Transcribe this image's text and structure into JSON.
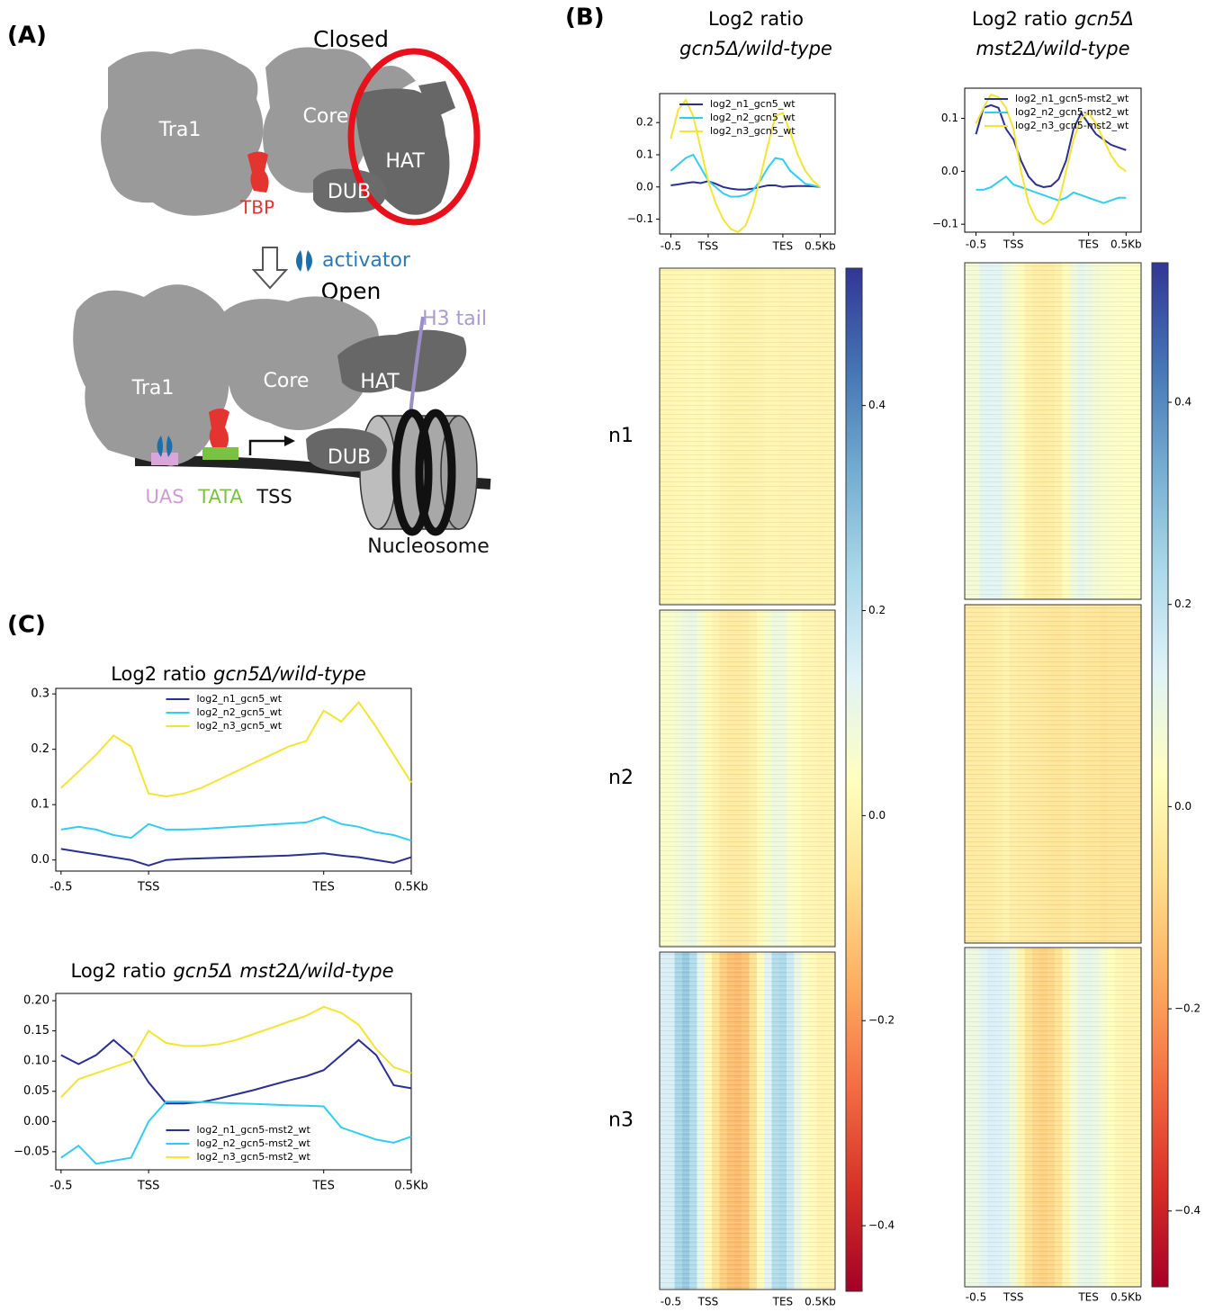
{
  "panel_labels": [
    "(A)",
    "(B)",
    "(C)"
  ],
  "diagram": {
    "closed": {
      "title": "Closed",
      "modules": [
        "Tra1",
        "Core",
        "HAT",
        "DUB",
        "TBP"
      ]
    },
    "arrow_label": "activator",
    "open": {
      "title": "Open",
      "modules": [
        "Tra1",
        "Core",
        "HAT",
        "DUB"
      ],
      "tail": "H3 tail",
      "promoter": [
        "UAS",
        "TATA",
        "TSS"
      ],
      "nucleosome": "Nucleosome"
    }
  },
  "chart_data": [
    {
      "type": "line",
      "title": [
        "Log2 ratio",
        "gcn5Δ/wild-type"
      ],
      "legend": "upper left",
      "x": [
        -0.5,
        -0.4,
        -0.3,
        -0.2,
        -0.1,
        0.0,
        0.1,
        0.2,
        0.3,
        0.4,
        0.5,
        0.6,
        0.7,
        0.8,
        0.9,
        1.0,
        1.1,
        1.2,
        1.3,
        1.4,
        1.5
      ],
      "xlim": [
        -0.65,
        1.7
      ],
      "xticks": [
        -0.5,
        {
          "value": 0,
          "label": "TSS"
        },
        {
          "value": 1,
          "label": "TES"
        },
        {
          "value": 1.5,
          "label": "0.5Kb"
        }
      ],
      "ylim": [
        -0.146,
        0.29
      ],
      "yticks": [
        {
          "value": -0.1,
          "label": "−0.1"
        },
        {
          "value": 0,
          "label": "0.0"
        },
        0.1,
        0.2
      ],
      "series": [
        {
          "name": "log2_n1_gcn5_wt",
          "color": "#2b2f8f",
          "values": [
            0.005,
            0.008,
            0.012,
            0.015,
            0.012,
            0.018,
            0.01,
            0.0,
            -0.005,
            -0.008,
            -0.008,
            -0.005,
            0.0,
            0.005,
            0.005,
            0.0,
            0.002,
            0.003,
            0.003,
            0.002,
            0.0
          ]
        },
        {
          "name": "log2_n2_gcn5_wt",
          "color": "#33ccee",
          "values": [
            0.05,
            0.07,
            0.09,
            0.1,
            0.06,
            0.02,
            0.0,
            -0.02,
            -0.03,
            -0.03,
            -0.025,
            -0.01,
            0.02,
            0.06,
            0.09,
            0.085,
            0.05,
            0.03,
            0.01,
            0.005,
            0.0
          ]
        },
        {
          "name": "log2_n3_gcn5_wt",
          "color": "#f2e534",
          "values": [
            0.15,
            0.24,
            0.27,
            0.22,
            0.12,
            0.02,
            -0.05,
            -0.1,
            -0.13,
            -0.14,
            -0.12,
            -0.06,
            0.03,
            0.13,
            0.22,
            0.23,
            0.17,
            0.1,
            0.05,
            0.02,
            0.0
          ]
        }
      ],
      "heatmap": {
        "groups": [
          "n1",
          "n2",
          "n3"
        ],
        "colorbar": {
          "lim": [
            -0.464,
            0.534
          ],
          "ticks": [
            {
              "value": -0.4,
              "label": "−0.4"
            },
            {
              "value": -0.2,
              "label": "−0.2"
            },
            {
              "value": 0,
              "label": "0.0"
            },
            0.2,
            0.4
          ]
        }
      }
    },
    {
      "type": "line",
      "title": [
        "Log2 ratio",
        "gcn5Δ",
        "mst2Δ/wild-type"
      ],
      "legend": "upper left",
      "x": [
        -0.5,
        -0.4,
        -0.3,
        -0.2,
        -0.1,
        0.0,
        0.1,
        0.2,
        0.3,
        0.4,
        0.5,
        0.6,
        0.7,
        0.8,
        0.9,
        1.0,
        1.1,
        1.2,
        1.3,
        1.4,
        1.5
      ],
      "xlim": [
        -0.65,
        1.7
      ],
      "xticks": [
        -0.5,
        {
          "value": 0,
          "label": "TSS"
        },
        {
          "value": 1,
          "label": "TES"
        },
        {
          "value": 1.5,
          "label": "0.5Kb"
        }
      ],
      "ylim": [
        -0.115,
        0.157
      ],
      "yticks": [
        {
          "value": -0.1,
          "label": "−0.1"
        },
        {
          "value": 0,
          "label": "0.0"
        },
        0.1
      ],
      "series": [
        {
          "name": "log2_n1_gcn5-mst2_wt",
          "color": "#2b2f8f",
          "values": [
            0.07,
            0.12,
            0.125,
            0.12,
            0.08,
            0.06,
            0.02,
            -0.01,
            -0.025,
            -0.03,
            -0.028,
            -0.015,
            0.02,
            0.08,
            0.11,
            0.09,
            0.07,
            0.06,
            0.05,
            0.045,
            0.04
          ]
        },
        {
          "name": "log2_n2_gcn5-mst2_wt",
          "color": "#33ccee",
          "values": [
            -0.035,
            -0.035,
            -0.03,
            -0.02,
            -0.01,
            -0.025,
            -0.03,
            -0.035,
            -0.04,
            -0.045,
            -0.05,
            -0.055,
            -0.05,
            -0.04,
            -0.045,
            -0.05,
            -0.055,
            -0.06,
            -0.055,
            -0.05,
            -0.05
          ]
        },
        {
          "name": "log2_n3_gcn5-mst2_wt",
          "color": "#f2e534",
          "values": [
            0.09,
            0.12,
            0.145,
            0.14,
            0.12,
            0.08,
            0.0,
            -0.06,
            -0.09,
            -0.1,
            -0.09,
            -0.06,
            0.0,
            0.06,
            0.1,
            0.11,
            0.09,
            0.06,
            0.03,
            0.01,
            0.0
          ]
        }
      ],
      "heatmap": {
        "groups": [
          "n1",
          "n2",
          "n3"
        ],
        "colorbar": {
          "lim": [
            -0.475,
            0.538
          ],
          "ticks": [
            {
              "value": -0.4,
              "label": "−0.4"
            },
            {
              "value": -0.2,
              "label": "−0.2"
            },
            {
              "value": 0,
              "label": "0.0"
            },
            0.2,
            0.4
          ]
        }
      }
    },
    {
      "type": "line",
      "title": [
        "Log2 ratio",
        "gcn5Δ/wild-type"
      ],
      "legend": "upper center",
      "x": [
        -0.5,
        -0.4,
        -0.3,
        -0.2,
        -0.1,
        0.0,
        0.1,
        0.2,
        0.3,
        0.4,
        0.5,
        0.6,
        0.7,
        0.8,
        0.9,
        1.0,
        1.1,
        1.2,
        1.3,
        1.4,
        1.5
      ],
      "xlim": [
        -0.53,
        1.5
      ],
      "xticks": [
        -0.5,
        {
          "value": 0,
          "label": "TSS"
        },
        {
          "value": 1,
          "label": "TES"
        },
        {
          "value": 1.5,
          "label": "0.5Kb"
        }
      ],
      "ylim": [
        -0.02,
        0.31
      ],
      "yticks": [
        {
          "value": 0,
          "label": "0.0"
        },
        0.1,
        0.2,
        0.3
      ],
      "series": [
        {
          "name": "log2_n1_gcn5_wt",
          "color": "#2b2f8f",
          "values": [
            0.02,
            0.015,
            0.01,
            0.005,
            0.0,
            -0.01,
            0.0,
            0.002,
            0.003,
            0.004,
            0.005,
            0.006,
            0.007,
            0.008,
            0.01,
            0.012,
            0.008,
            0.005,
            0.0,
            -0.005,
            0.005
          ]
        },
        {
          "name": "log2_n2_gcn5_wt",
          "color": "#33ccee",
          "values": [
            0.055,
            0.06,
            0.055,
            0.045,
            0.04,
            0.065,
            0.055,
            0.055,
            0.056,
            0.058,
            0.06,
            0.062,
            0.064,
            0.066,
            0.068,
            0.078,
            0.065,
            0.06,
            0.05,
            0.045,
            0.035
          ]
        },
        {
          "name": "log2_n3_gcn5_wt",
          "color": "#f2e534",
          "values": [
            0.13,
            0.16,
            0.19,
            0.225,
            0.205,
            0.12,
            0.115,
            0.12,
            0.13,
            0.145,
            0.16,
            0.175,
            0.19,
            0.205,
            0.215,
            0.27,
            0.25,
            0.285,
            0.24,
            0.19,
            0.14
          ]
        }
      ]
    },
    {
      "type": "line",
      "title": [
        "Log2 ratio",
        "gcn5Δ",
        "mst2Δ/wild-type"
      ],
      "legend": "lower center",
      "x": [
        -0.5,
        -0.4,
        -0.3,
        -0.2,
        -0.1,
        0.0,
        0.1,
        0.2,
        0.3,
        0.4,
        0.5,
        0.6,
        0.7,
        0.8,
        0.9,
        1.0,
        1.1,
        1.2,
        1.3,
        1.4,
        1.5
      ],
      "xlim": [
        -0.53,
        1.5
      ],
      "xticks": [
        -0.5,
        {
          "value": 0,
          "label": "TSS"
        },
        {
          "value": 1,
          "label": "TES"
        },
        {
          "value": 1.5,
          "label": "0.5Kb"
        }
      ],
      "ylim": [
        -0.08,
        0.212
      ],
      "yticks": [
        {
          "value": -0.05,
          "label": "−0.05"
        },
        {
          "value": 0,
          "label": "0.00"
        },
        {
          "value": 0.05,
          "label": "0.05"
        },
        {
          "value": 0.1,
          "label": "0.10"
        },
        {
          "value": 0.15,
          "label": "0.15"
        },
        {
          "value": 0.2,
          "label": "0.20"
        }
      ],
      "series": [
        {
          "name": "log2_n1_gcn5-mst2_wt",
          "color": "#2b2f8f",
          "values": [
            0.11,
            0.095,
            0.11,
            0.135,
            0.11,
            0.065,
            0.03,
            0.03,
            0.032,
            0.038,
            0.045,
            0.052,
            0.06,
            0.068,
            0.075,
            0.085,
            0.11,
            0.135,
            0.11,
            0.06,
            0.055
          ]
        },
        {
          "name": "log2_n2_gcn5-mst2_wt",
          "color": "#33ccee",
          "values": [
            -0.06,
            -0.04,
            -0.07,
            -0.065,
            -0.06,
            0.0,
            0.033,
            0.033,
            0.032,
            0.031,
            0.03,
            0.029,
            0.028,
            0.027,
            0.026,
            0.025,
            -0.01,
            -0.02,
            -0.03,
            -0.035,
            -0.025
          ]
        },
        {
          "name": "log2_n3_gcn5-mst2_wt",
          "color": "#f2e534",
          "values": [
            0.04,
            0.07,
            0.08,
            0.09,
            0.1,
            0.15,
            0.13,
            0.125,
            0.125,
            0.128,
            0.135,
            0.145,
            0.155,
            0.165,
            0.175,
            0.19,
            0.18,
            0.16,
            0.12,
            0.09,
            0.08
          ]
        }
      ]
    }
  ]
}
